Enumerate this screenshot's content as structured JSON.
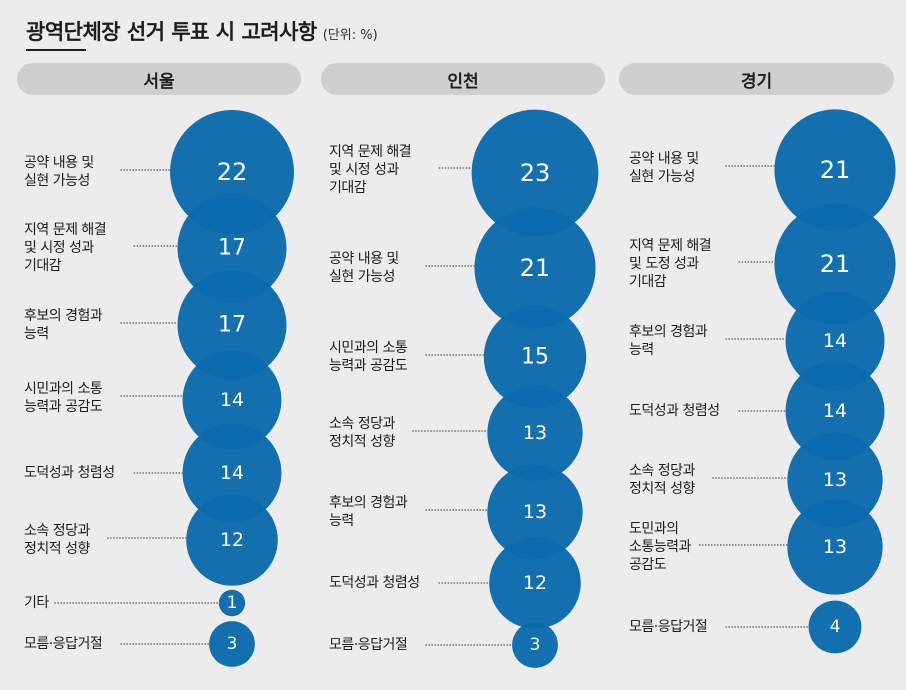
{
  "title": "광역단체장 선거 투표 시 고려사항",
  "unit": "(단위: %)",
  "colors": {
    "bubble": "#0b6aaa",
    "bubble_small": "#0d70b2",
    "header_bg": "#cfcfcf",
    "background": "#ececec"
  },
  "chart_data": [
    {
      "type": "bubble",
      "region": "서울",
      "categories": [
        "공약 내용 및\n실현 가능성",
        "지역 문제 해결\n및 시정 성과\n기대감",
        "후보의 경험과\n능력",
        "시민과의 소통\n능력과 공감도",
        "도덕성과 청렴성",
        "소속 정당과\n정치적 성향",
        "기타",
        "모름·응답거절"
      ],
      "values": [
        22,
        17,
        17,
        14,
        14,
        12,
        1,
        3
      ]
    },
    {
      "type": "bubble",
      "region": "인천",
      "categories": [
        "지역 문제 해결\n및 시정 성과\n기대감",
        "공약 내용 및\n실현 가능성",
        "시민과의 소통\n능력과 공감도",
        "소속 정당과\n정치적 성향",
        "후보의 경험과\n능력",
        "도덕성과 청렴성",
        "모름·응답거절"
      ],
      "values": [
        23,
        21,
        15,
        13,
        13,
        12,
        3
      ]
    },
    {
      "type": "bubble",
      "region": "경기",
      "categories": [
        "공약 내용 및\n실현 가능성",
        "지역 문제 해결\n및 도정 성과\n기대감",
        "후보의 경험과\n능력",
        "도덕성과 청렴성",
        "소속 정당과\n정치적 성향",
        "도민과의\n소통능력과\n공감도",
        "모름·응답거절"
      ],
      "values": [
        21,
        21,
        14,
        14,
        13,
        13,
        4
      ]
    }
  ]
}
